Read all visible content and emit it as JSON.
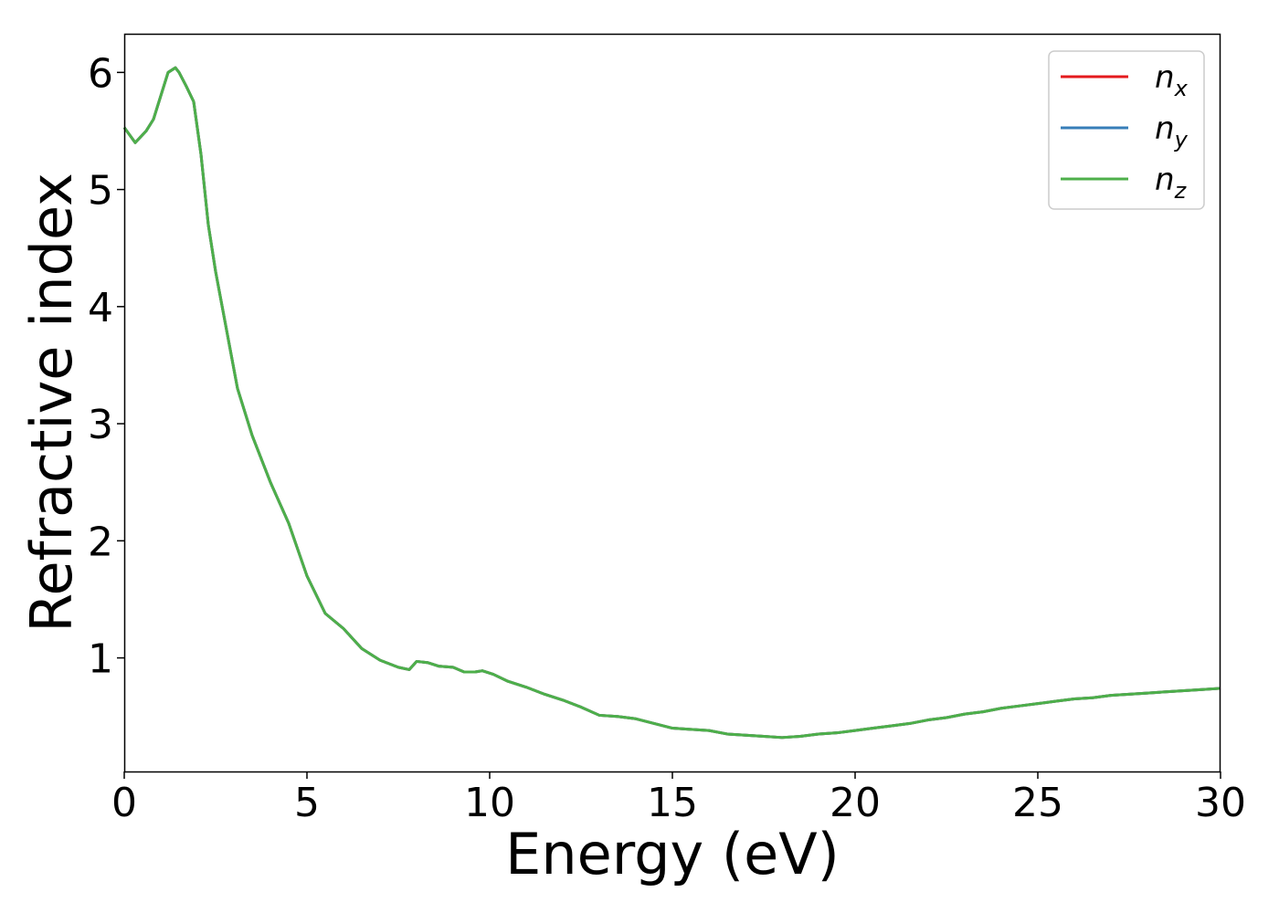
{
  "chart_data": {
    "type": "line",
    "xlabel": "Energy (eV)",
    "ylabel": "Refractive index",
    "xlim": [
      0,
      30
    ],
    "ylim": [
      0.03,
      6.33
    ],
    "xticks": [
      "0",
      "5",
      "10",
      "15",
      "20",
      "25",
      "30"
    ],
    "yticks": [
      "1",
      "2",
      "3",
      "4",
      "5",
      "6"
    ],
    "grid": false,
    "legend_position": "top-right",
    "series": [
      {
        "name": "n",
        "subscript": "x",
        "color": "#e41a1c",
        "x": [
          0,
          0.3,
          0.6,
          0.8,
          1.0,
          1.2,
          1.4,
          1.5,
          1.7,
          1.9,
          2.1,
          2.3,
          2.5,
          2.8,
          3.1,
          3.5,
          4.0,
          4.5,
          5.0,
          5.5,
          6.0,
          6.5,
          7.0,
          7.5,
          7.8,
          8.0,
          8.3,
          8.6,
          9.0,
          9.3,
          9.6,
          9.8,
          10.1,
          10.5,
          11.0,
          11.5,
          12.0,
          12.5,
          13.0,
          13.5,
          14.0,
          14.5,
          15.0,
          15.5,
          16.0,
          16.5,
          17.0,
          17.5,
          18.0,
          18.5,
          19.0,
          19.5,
          20.0,
          20.5,
          21.0,
          21.5,
          22.0,
          22.5,
          23.0,
          23.5,
          24.0,
          24.5,
          25.0,
          25.5,
          26.0,
          26.5,
          27.0,
          27.5,
          28.0,
          28.5,
          29.0,
          29.5,
          30.0
        ],
        "y": [
          5.53,
          5.4,
          5.5,
          5.6,
          5.8,
          6.0,
          6.04,
          6.0,
          5.88,
          5.75,
          5.3,
          4.7,
          4.3,
          3.8,
          3.3,
          2.9,
          2.5,
          2.15,
          1.7,
          1.38,
          1.25,
          1.08,
          0.98,
          0.92,
          0.9,
          0.97,
          0.96,
          0.93,
          0.92,
          0.88,
          0.88,
          0.89,
          0.86,
          0.8,
          0.75,
          0.69,
          0.64,
          0.58,
          0.51,
          0.5,
          0.48,
          0.44,
          0.4,
          0.39,
          0.38,
          0.35,
          0.34,
          0.33,
          0.32,
          0.33,
          0.35,
          0.36,
          0.38,
          0.4,
          0.42,
          0.44,
          0.47,
          0.49,
          0.52,
          0.54,
          0.57,
          0.59,
          0.61,
          0.63,
          0.65,
          0.66,
          0.68,
          0.69,
          0.7,
          0.71,
          0.72,
          0.73,
          0.74
        ]
      },
      {
        "name": "n",
        "subscript": "y",
        "color": "#377eb8",
        "x": [
          0,
          0.3,
          0.6,
          0.8,
          1.0,
          1.2,
          1.4,
          1.5,
          1.7,
          1.9,
          2.1,
          2.3,
          2.5,
          2.8,
          3.1,
          3.5,
          4.0,
          4.5,
          5.0,
          5.5,
          6.0,
          6.5,
          7.0,
          7.5,
          7.8,
          8.0,
          8.3,
          8.6,
          9.0,
          9.3,
          9.6,
          9.8,
          10.1,
          10.5,
          11.0,
          11.5,
          12.0,
          12.5,
          13.0,
          13.5,
          14.0,
          14.5,
          15.0,
          15.5,
          16.0,
          16.5,
          17.0,
          17.5,
          18.0,
          18.5,
          19.0,
          19.5,
          20.0,
          20.5,
          21.0,
          21.5,
          22.0,
          22.5,
          23.0,
          23.5,
          24.0,
          24.5,
          25.0,
          25.5,
          26.0,
          26.5,
          27.0,
          27.5,
          28.0,
          28.5,
          29.0,
          29.5,
          30.0
        ],
        "y": [
          5.53,
          5.4,
          5.5,
          5.6,
          5.8,
          6.0,
          6.04,
          6.0,
          5.88,
          5.75,
          5.3,
          4.7,
          4.3,
          3.8,
          3.3,
          2.9,
          2.5,
          2.15,
          1.7,
          1.38,
          1.25,
          1.08,
          0.98,
          0.92,
          0.9,
          0.97,
          0.96,
          0.93,
          0.92,
          0.88,
          0.88,
          0.89,
          0.86,
          0.8,
          0.75,
          0.69,
          0.64,
          0.58,
          0.51,
          0.5,
          0.48,
          0.44,
          0.4,
          0.39,
          0.38,
          0.35,
          0.34,
          0.33,
          0.32,
          0.33,
          0.35,
          0.36,
          0.38,
          0.4,
          0.42,
          0.44,
          0.47,
          0.49,
          0.52,
          0.54,
          0.57,
          0.59,
          0.61,
          0.63,
          0.65,
          0.66,
          0.68,
          0.69,
          0.7,
          0.71,
          0.72,
          0.73,
          0.74
        ]
      },
      {
        "name": "n",
        "subscript": "z",
        "color": "#4daf4a",
        "x": [
          0,
          0.3,
          0.6,
          0.8,
          1.0,
          1.2,
          1.4,
          1.5,
          1.7,
          1.9,
          2.1,
          2.3,
          2.5,
          2.8,
          3.1,
          3.5,
          4.0,
          4.5,
          5.0,
          5.5,
          6.0,
          6.5,
          7.0,
          7.5,
          7.8,
          8.0,
          8.3,
          8.6,
          9.0,
          9.3,
          9.6,
          9.8,
          10.1,
          10.5,
          11.0,
          11.5,
          12.0,
          12.5,
          13.0,
          13.5,
          14.0,
          14.5,
          15.0,
          15.5,
          16.0,
          16.5,
          17.0,
          17.5,
          18.0,
          18.5,
          19.0,
          19.5,
          20.0,
          20.5,
          21.0,
          21.5,
          22.0,
          22.5,
          23.0,
          23.5,
          24.0,
          24.5,
          25.0,
          25.5,
          26.0,
          26.5,
          27.0,
          27.5,
          28.0,
          28.5,
          29.0,
          29.5,
          30.0
        ],
        "y": [
          5.53,
          5.4,
          5.5,
          5.6,
          5.8,
          6.0,
          6.04,
          6.0,
          5.88,
          5.75,
          5.3,
          4.7,
          4.3,
          3.8,
          3.3,
          2.9,
          2.5,
          2.15,
          1.7,
          1.38,
          1.25,
          1.08,
          0.98,
          0.92,
          0.9,
          0.97,
          0.96,
          0.93,
          0.92,
          0.88,
          0.88,
          0.89,
          0.86,
          0.8,
          0.75,
          0.69,
          0.64,
          0.58,
          0.51,
          0.5,
          0.48,
          0.44,
          0.4,
          0.39,
          0.38,
          0.35,
          0.34,
          0.33,
          0.32,
          0.33,
          0.35,
          0.36,
          0.38,
          0.4,
          0.42,
          0.44,
          0.47,
          0.49,
          0.52,
          0.54,
          0.57,
          0.59,
          0.61,
          0.63,
          0.65,
          0.66,
          0.68,
          0.69,
          0.7,
          0.71,
          0.72,
          0.73,
          0.74
        ]
      }
    ]
  }
}
